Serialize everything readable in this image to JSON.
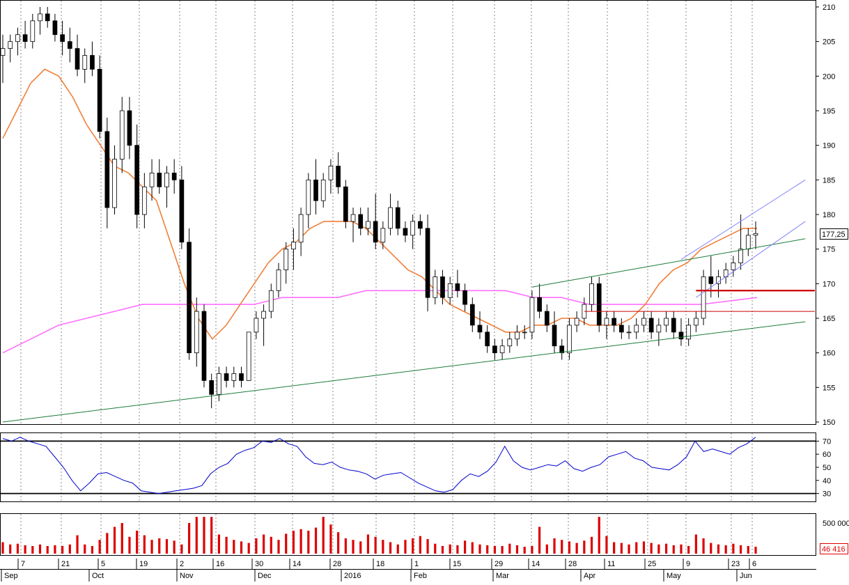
{
  "colors": {
    "bull_candle": "#ffffff",
    "bear_candle": "#000000",
    "ma_short": "#f07f3a",
    "ma_long": "#ff6eff",
    "trend_channel": "#1a7a3a",
    "short_channel": "#7f7fff",
    "support_line": "#cc0000",
    "rsi_line": "#0000cc",
    "volume_bar": "#dd0000",
    "grid": "#555555",
    "price_badge_border": "#000000",
    "volume_badge_border": "#dd0000",
    "volume_badge_text": "#dd0000"
  },
  "chart_data": [
    {
      "type": "candlestick",
      "title": "",
      "ylim": [
        150,
        210
      ],
      "y_ticks": [
        "150",
        "155",
        "160",
        "165",
        "170",
        "175",
        "180",
        "185",
        "190",
        "195",
        "200",
        "205",
        "210"
      ],
      "last_price_label": "177,25",
      "grid": "vertical dotted",
      "candles": [
        {
          "o": 203,
          "h": 206,
          "l": 199,
          "c": 204
        },
        {
          "o": 204,
          "h": 206,
          "l": 202,
          "c": 205
        },
        {
          "o": 205,
          "h": 207,
          "l": 203,
          "c": 206
        },
        {
          "o": 206,
          "h": 208,
          "l": 204,
          "c": 205
        },
        {
          "o": 205,
          "h": 209,
          "l": 204,
          "c": 208
        },
        {
          "o": 208,
          "h": 210,
          "l": 206,
          "c": 209
        },
        {
          "o": 209,
          "h": 210,
          "l": 207,
          "c": 208
        },
        {
          "o": 208,
          "h": 209,
          "l": 205,
          "c": 206
        },
        {
          "o": 206,
          "h": 208,
          "l": 203,
          "c": 205
        },
        {
          "o": 205,
          "h": 207,
          "l": 202,
          "c": 204
        },
        {
          "o": 204,
          "h": 206,
          "l": 200,
          "c": 201
        },
        {
          "o": 201,
          "h": 204,
          "l": 199,
          "c": 203
        },
        {
          "o": 203,
          "h": 205,
          "l": 200,
          "c": 201
        },
        {
          "o": 201,
          "h": 203,
          "l": 191,
          "c": 192
        },
        {
          "o": 192,
          "h": 194,
          "l": 178,
          "c": 181
        },
        {
          "o": 181,
          "h": 190,
          "l": 180,
          "c": 188
        },
        {
          "o": 188,
          "h": 197,
          "l": 186,
          "c": 195
        },
        {
          "o": 195,
          "h": 197,
          "l": 188,
          "c": 190
        },
        {
          "o": 190,
          "h": 193,
          "l": 178,
          "c": 180
        },
        {
          "o": 180,
          "h": 186,
          "l": 178,
          "c": 184
        },
        {
          "o": 184,
          "h": 188,
          "l": 182,
          "c": 186
        },
        {
          "o": 186,
          "h": 188,
          "l": 183,
          "c": 184
        },
        {
          "o": 184,
          "h": 187,
          "l": 181,
          "c": 186
        },
        {
          "o": 186,
          "h": 188,
          "l": 183,
          "c": 185
        },
        {
          "o": 185,
          "h": 187,
          "l": 175,
          "c": 176
        },
        {
          "o": 176,
          "h": 178,
          "l": 159,
          "c": 160
        },
        {
          "o": 160,
          "h": 168,
          "l": 158,
          "c": 166
        },
        {
          "o": 166,
          "h": 167,
          "l": 155,
          "c": 156
        },
        {
          "o": 156,
          "h": 157,
          "l": 152,
          "c": 154
        },
        {
          "o": 154,
          "h": 158,
          "l": 153,
          "c": 157
        },
        {
          "o": 157,
          "h": 158,
          "l": 155,
          "c": 156
        },
        {
          "o": 156,
          "h": 158,
          "l": 155,
          "c": 157
        },
        {
          "o": 157,
          "h": 158,
          "l": 155,
          "c": 156
        },
        {
          "o": 156,
          "h": 163,
          "l": 156,
          "c": 163
        },
        {
          "o": 163,
          "h": 166,
          "l": 162,
          "c": 165
        },
        {
          "o": 165,
          "h": 167,
          "l": 161,
          "c": 166
        },
        {
          "o": 166,
          "h": 170,
          "l": 165,
          "c": 169
        },
        {
          "o": 169,
          "h": 173,
          "l": 168,
          "c": 172
        },
        {
          "o": 172,
          "h": 176,
          "l": 170,
          "c": 175
        },
        {
          "o": 175,
          "h": 178,
          "l": 172,
          "c": 176
        },
        {
          "o": 176,
          "h": 181,
          "l": 174,
          "c": 180
        },
        {
          "o": 180,
          "h": 186,
          "l": 178,
          "c": 185
        },
        {
          "o": 185,
          "h": 188,
          "l": 180,
          "c": 182
        },
        {
          "o": 182,
          "h": 186,
          "l": 181,
          "c": 185
        },
        {
          "o": 185,
          "h": 188,
          "l": 183,
          "c": 187
        },
        {
          "o": 187,
          "h": 189,
          "l": 183,
          "c": 184
        },
        {
          "o": 184,
          "h": 185,
          "l": 178,
          "c": 179
        },
        {
          "o": 179,
          "h": 181,
          "l": 176,
          "c": 180
        },
        {
          "o": 180,
          "h": 181,
          "l": 177,
          "c": 178
        },
        {
          "o": 178,
          "h": 181,
          "l": 177,
          "c": 179
        },
        {
          "o": 179,
          "h": 183,
          "l": 175,
          "c": 176
        },
        {
          "o": 176,
          "h": 179,
          "l": 175,
          "c": 178
        },
        {
          "o": 178,
          "h": 183,
          "l": 177,
          "c": 181
        },
        {
          "o": 181,
          "h": 182,
          "l": 177,
          "c": 178
        },
        {
          "o": 178,
          "h": 179,
          "l": 176,
          "c": 177
        },
        {
          "o": 177,
          "h": 180,
          "l": 175,
          "c": 179
        },
        {
          "o": 179,
          "h": 180,
          "l": 177,
          "c": 178
        },
        {
          "o": 178,
          "h": 180,
          "l": 166,
          "c": 168
        },
        {
          "o": 168,
          "h": 172,
          "l": 167,
          "c": 171
        },
        {
          "o": 171,
          "h": 172,
          "l": 167,
          "c": 168
        },
        {
          "o": 168,
          "h": 171,
          "l": 167,
          "c": 170
        },
        {
          "o": 170,
          "h": 172,
          "l": 168,
          "c": 169
        },
        {
          "o": 169,
          "h": 170,
          "l": 166,
          "c": 167
        },
        {
          "o": 167,
          "h": 168,
          "l": 163,
          "c": 164
        },
        {
          "o": 164,
          "h": 166,
          "l": 162,
          "c": 163
        },
        {
          "o": 163,
          "h": 164,
          "l": 160,
          "c": 161
        },
        {
          "o": 161,
          "h": 162,
          "l": 159,
          "c": 160
        },
        {
          "o": 160,
          "h": 162,
          "l": 159,
          "c": 161
        },
        {
          "o": 161,
          "h": 163,
          "l": 160,
          "c": 162
        },
        {
          "o": 162,
          "h": 164,
          "l": 161,
          "c": 163
        },
        {
          "o": 163,
          "h": 164,
          "l": 162,
          "c": 163
        },
        {
          "o": 163,
          "h": 169,
          "l": 162,
          "c": 168
        },
        {
          "o": 168,
          "h": 170,
          "l": 165,
          "c": 166
        },
        {
          "o": 166,
          "h": 167,
          "l": 163,
          "c": 164
        },
        {
          "o": 164,
          "h": 166,
          "l": 160,
          "c": 161
        },
        {
          "o": 161,
          "h": 162,
          "l": 159,
          "c": 160
        },
        {
          "o": 160,
          "h": 165,
          "l": 159,
          "c": 164
        },
        {
          "o": 164,
          "h": 166,
          "l": 163,
          "c": 165
        },
        {
          "o": 165,
          "h": 168,
          "l": 164,
          "c": 167
        },
        {
          "o": 167,
          "h": 171,
          "l": 166,
          "c": 170
        },
        {
          "o": 170,
          "h": 171,
          "l": 163,
          "c": 164
        },
        {
          "o": 164,
          "h": 166,
          "l": 162,
          "c": 165
        },
        {
          "o": 165,
          "h": 166,
          "l": 163,
          "c": 164
        },
        {
          "o": 164,
          "h": 165,
          "l": 162,
          "c": 163
        },
        {
          "o": 163,
          "h": 164,
          "l": 162,
          "c": 163
        },
        {
          "o": 163,
          "h": 165,
          "l": 162,
          "c": 164
        },
        {
          "o": 164,
          "h": 166,
          "l": 163,
          "c": 165
        },
        {
          "o": 165,
          "h": 166,
          "l": 162,
          "c": 163
        },
        {
          "o": 163,
          "h": 165,
          "l": 161,
          "c": 164
        },
        {
          "o": 164,
          "h": 166,
          "l": 163,
          "c": 165
        },
        {
          "o": 165,
          "h": 166,
          "l": 162,
          "c": 163
        },
        {
          "o": 163,
          "h": 165,
          "l": 161,
          "c": 162
        },
        {
          "o": 162,
          "h": 165,
          "l": 161,
          "c": 164
        },
        {
          "o": 164,
          "h": 166,
          "l": 163,
          "c": 165
        },
        {
          "o": 165,
          "h": 172,
          "l": 164,
          "c": 171
        },
        {
          "o": 171,
          "h": 174,
          "l": 168,
          "c": 170
        },
        {
          "o": 170,
          "h": 172,
          "l": 168,
          "c": 171
        },
        {
          "o": 171,
          "h": 173,
          "l": 170,
          "c": 172
        },
        {
          "o": 172,
          "h": 174,
          "l": 171,
          "c": 173
        },
        {
          "o": 173,
          "h": 180,
          "l": 172,
          "c": 175
        },
        {
          "o": 175,
          "h": 178,
          "l": 174,
          "c": 177
        },
        {
          "o": 177,
          "h": 179,
          "l": 175,
          "c": 177.25
        }
      ],
      "ma_short": [
        191,
        195,
        199,
        201,
        200,
        197,
        193,
        190,
        187,
        186,
        184,
        182,
        176,
        170,
        165,
        162,
        164,
        167,
        170,
        173,
        175,
        176,
        178,
        179,
        179,
        179,
        178,
        176,
        174,
        172,
        171,
        169,
        167,
        166,
        165,
        164,
        163,
        163,
        164,
        164,
        165,
        165,
        164,
        164,
        164,
        165,
        167,
        170,
        172,
        173,
        175,
        176,
        177,
        178,
        178
      ],
      "ma_long": [
        160,
        162,
        164,
        165,
        166,
        167,
        167,
        167,
        167,
        167,
        168,
        168,
        168,
        169,
        169,
        169,
        169,
        169,
        169,
        168,
        168,
        167,
        167,
        167,
        167,
        167,
        167.5,
        168
      ],
      "trend_channel": [
        {
          "from": [
            0,
            150
          ],
          "to": [
            100,
            164.5
          ]
        },
        {
          "from": [
            71,
            169.5
          ],
          "to": [
            100,
            176.5
          ]
        }
      ],
      "short_channel": [
        {
          "from": [
            91,
            173.5
          ],
          "to": [
            100,
            185
          ]
        },
        {
          "from": [
            93,
            168
          ],
          "to": [
            100,
            179
          ]
        }
      ],
      "support_lines": [
        {
          "from": [
            93,
            169
          ],
          "to": [
            100,
            169
          ],
          "weight": "heavy"
        },
        {
          "from": [
            78,
            166
          ],
          "to": [
            100,
            166
          ],
          "weight": "thin"
        }
      ]
    },
    {
      "type": "line",
      "title": "",
      "ylim": [
        25,
        75
      ],
      "y_ticks": [
        "30",
        "40",
        "50",
        "60",
        "70"
      ],
      "reference_lines": [
        30,
        70
      ],
      "series": [
        {
          "values": [
            72,
            70,
            73,
            70,
            68,
            66,
            58,
            50,
            40,
            32,
            38,
            45,
            46,
            43,
            40,
            38,
            32,
            31,
            30,
            31,
            32,
            33,
            34,
            36,
            45,
            50,
            53,
            60,
            63,
            65,
            70,
            69,
            72,
            68,
            66,
            58,
            53,
            52,
            54,
            50,
            48,
            47,
            45,
            41,
            44,
            45,
            46,
            42,
            38,
            35,
            32,
            31,
            33,
            40,
            45,
            43,
            47,
            54,
            66,
            55,
            50,
            48,
            50,
            52,
            51,
            55,
            49,
            47,
            50,
            52,
            58,
            60,
            62,
            57,
            55,
            50,
            49,
            48,
            52,
            58,
            70,
            62,
            64,
            62,
            60,
            65,
            68,
            73
          ]
        }
      ]
    },
    {
      "type": "bar",
      "title": "",
      "y_ticks": [
        "500 000"
      ],
      "last_value_label": "46 416",
      "values": [
        150,
        120,
        130,
        110,
        100,
        120,
        100,
        110,
        100,
        120,
        240,
        120,
        100,
        180,
        270,
        350,
        400,
        220,
        300,
        240,
        180,
        200,
        190,
        170,
        120,
        400,
        480,
        480,
        480,
        250,
        220,
        180,
        160,
        140,
        200,
        250,
        220,
        180,
        260,
        300,
        320,
        300,
        340,
        480,
        380,
        280,
        200,
        180,
        160,
        250,
        220,
        180,
        150,
        120,
        180,
        200,
        230,
        190,
        130,
        100,
        120,
        110,
        170,
        150,
        120,
        110,
        100,
        100,
        130,
        110,
        90,
        100,
        350,
        120,
        200,
        180,
        160,
        140,
        170,
        220,
        480,
        230,
        150,
        140,
        120,
        150,
        160,
        140,
        120,
        130,
        110,
        120,
        100,
        250,
        200,
        140,
        120,
        110,
        130,
        110,
        100,
        90
      ]
    }
  ],
  "x_axis": {
    "day_labels": [
      "7",
      "21",
      "5",
      "19",
      "2",
      "16",
      "30",
      "14",
      "28",
      "18",
      "1",
      "15",
      "29",
      "14",
      "28",
      "11",
      "25",
      "9",
      "23",
      "6"
    ],
    "month_labels": [
      "Sep",
      "Oct",
      "Nov",
      "Dec",
      "2016",
      "Feb",
      "Mar",
      "Apr",
      "May",
      "Jun"
    ]
  }
}
